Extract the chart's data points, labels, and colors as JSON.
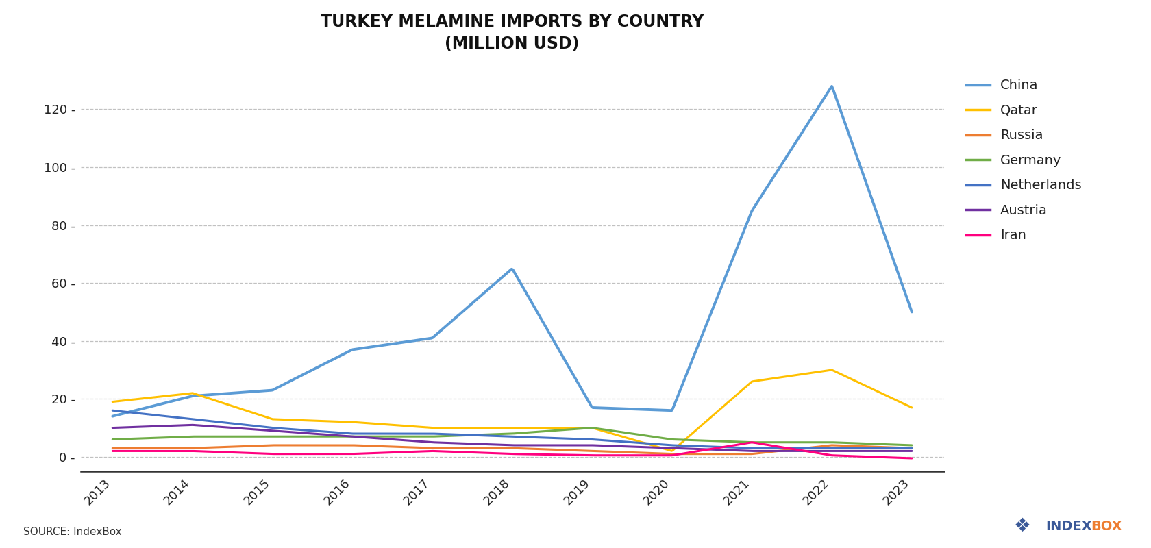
{
  "title": "TURKEY MELAMINE IMPORTS BY COUNTRY\n(MILLION USD)",
  "years": [
    2013,
    2014,
    2015,
    2016,
    2017,
    2018,
    2019,
    2020,
    2021,
    2022,
    2023
  ],
  "series": {
    "China": {
      "color": "#5B9BD5",
      "values": [
        14,
        21,
        23,
        37,
        41,
        65,
        17,
        16,
        85,
        128,
        50
      ],
      "linewidth": 2.8
    },
    "Qatar": {
      "color": "#FFC000",
      "values": [
        19,
        22,
        13,
        12,
        10,
        10,
        10,
        2,
        26,
        30,
        17
      ],
      "linewidth": 2.2
    },
    "Russia": {
      "color": "#ED7D31",
      "values": [
        3,
        3,
        4,
        4,
        3,
        3,
        2,
        1,
        1,
        4,
        3
      ],
      "linewidth": 2.2
    },
    "Germany": {
      "color": "#70AD47",
      "values": [
        6,
        7,
        7,
        7,
        7,
        8,
        10,
        6,
        5,
        5,
        4
      ],
      "linewidth": 2.2
    },
    "Netherlands": {
      "color": "#4472C4",
      "values": [
        16,
        13,
        10,
        8,
        8,
        7,
        6,
        4,
        3,
        3,
        3
      ],
      "linewidth": 2.2
    },
    "Austria": {
      "color": "#7030A0",
      "values": [
        10,
        11,
        9,
        7,
        5,
        4,
        4,
        3,
        2,
        2,
        2
      ],
      "linewidth": 2.2
    },
    "Iran": {
      "color": "#FF007F",
      "values": [
        2,
        2,
        1,
        1,
        2,
        1,
        0.5,
        0.5,
        5,
        0.5,
        -0.5
      ],
      "linewidth": 2.2
    }
  },
  "ylim": [
    -5,
    135
  ],
  "yticks": [
    0,
    20,
    40,
    60,
    80,
    100,
    120
  ],
  "xlim_min": 2012.6,
  "xlim_max": 2023.4,
  "background_color": "#FFFFFF",
  "grid_color": "#BBBBBB",
  "source_text": "SOURCE: IndexBox",
  "indexbox_text": "INDEXBOX",
  "title_fontsize": 17,
  "tick_fontsize": 13,
  "legend_fontsize": 14
}
